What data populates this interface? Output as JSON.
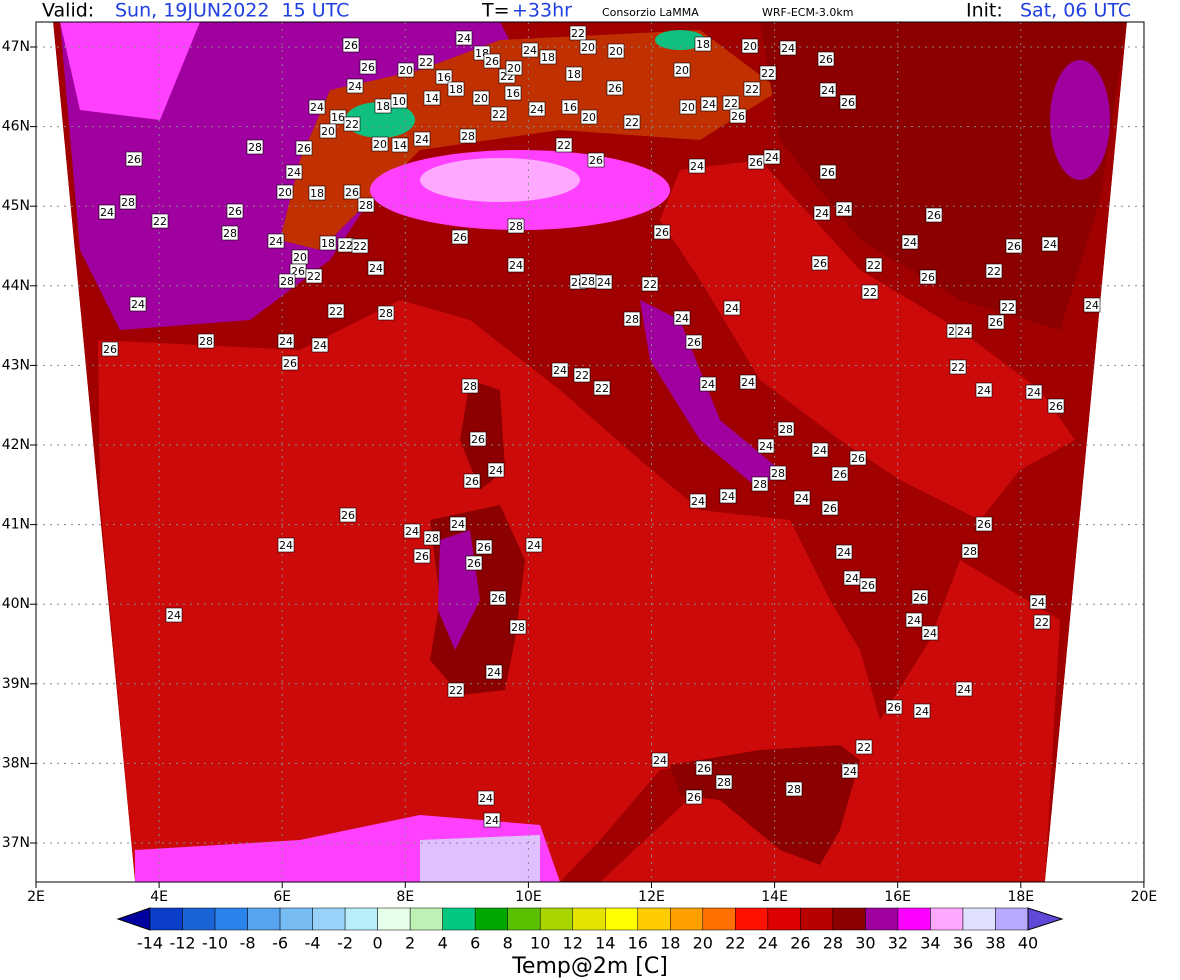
{
  "header": {
    "valid_label": "Valid:",
    "valid_time": "Sun, 19JUN2022  15 UTC",
    "lead_label": "T=",
    "lead_time": "+33hr",
    "source": "Consorzio LaMMA",
    "model": "WRF-ECM-3.0km",
    "init_label": "Init:",
    "init_time": "Sat, 06 UTC"
  },
  "map": {
    "lat_labels": [
      "47N",
      "46N",
      "45N",
      "44N",
      "43N",
      "42N",
      "41N",
      "40N",
      "39N",
      "38N",
      "37N"
    ],
    "lon_labels": [
      "2E",
      "4E",
      "6E",
      "8E",
      "10E",
      "12E",
      "14E",
      "16E",
      "18E",
      "20E"
    ],
    "station_values": [
      26,
      24,
      22,
      18,
      24,
      18,
      20,
      20,
      18,
      20,
      24,
      26,
      26,
      20,
      22,
      16,
      18,
      26,
      22,
      20,
      18,
      26,
      20,
      22,
      24,
      24,
      16,
      22,
      20,
      18,
      10,
      14,
      20,
      16,
      24,
      16,
      20,
      22,
      22,
      20,
      24,
      22,
      26,
      22,
      24,
      26,
      26,
      28,
      26,
      24,
      20,
      18,
      26,
      28,
      20,
      14,
      24,
      28,
      22,
      26,
      24,
      26,
      24,
      26,
      24,
      28,
      22,
      28,
      26,
      24,
      18,
      22,
      22,
      24,
      20,
      26,
      22,
      28,
      26,
      28,
      26,
      24,
      24,
      26,
      24,
      26,
      24,
      24,
      28,
      28,
      24,
      22,
      26,
      22,
      22,
      26,
      22,
      22,
      26,
      24,
      24,
      22,
      28,
      28,
      24,
      24,
      26,
      26,
      28,
      24,
      26,
      24,
      24,
      24,
      22,
      24,
      24,
      26,
      28,
      24,
      22,
      22,
      24,
      24,
      26,
      24,
      26,
      28,
      24,
      28,
      24,
      26,
      26,
      28,
      24,
      24,
      24,
      26,
      26,
      24,
      28,
      24,
      26,
      26,
      24,
      26,
      24,
      24,
      24,
      26,
      28,
      26,
      26,
      28,
      24,
      26,
      24,
      24,
      24,
      22,
      24,
      22,
      24,
      26,
      24,
      22,
      24,
      24,
      26,
      28,
      26,
      28,
      24,
      24
    ]
  },
  "colorbar": {
    "title": "Temp@2m [C]",
    "levels": [
      -14,
      -12,
      -10,
      -8,
      -6,
      -4,
      -2,
      0,
      2,
      4,
      6,
      8,
      10,
      12,
      14,
      16,
      18,
      20,
      22,
      24,
      26,
      28,
      30,
      32,
      34,
      36,
      38,
      40
    ],
    "colors": [
      "#0000a0",
      "#0a3ec8",
      "#1a64d8",
      "#2a84ec",
      "#56a4f0",
      "#78bcf4",
      "#98d2f8",
      "#b8eefa",
      "#e6ffe8",
      "#bef2b4",
      "#00c880",
      "#00a800",
      "#58c000",
      "#a8d400",
      "#e4e400",
      "#ffff00",
      "#ffcc00",
      "#ffa000",
      "#ff7000",
      "#ff1000",
      "#dc0000",
      "#b80000",
      "#8c0000",
      "#a000a0",
      "#ff00ff",
      "#ffa8ff",
      "#e0e0ff",
      "#b8a8ff",
      "#6048d8"
    ]
  }
}
